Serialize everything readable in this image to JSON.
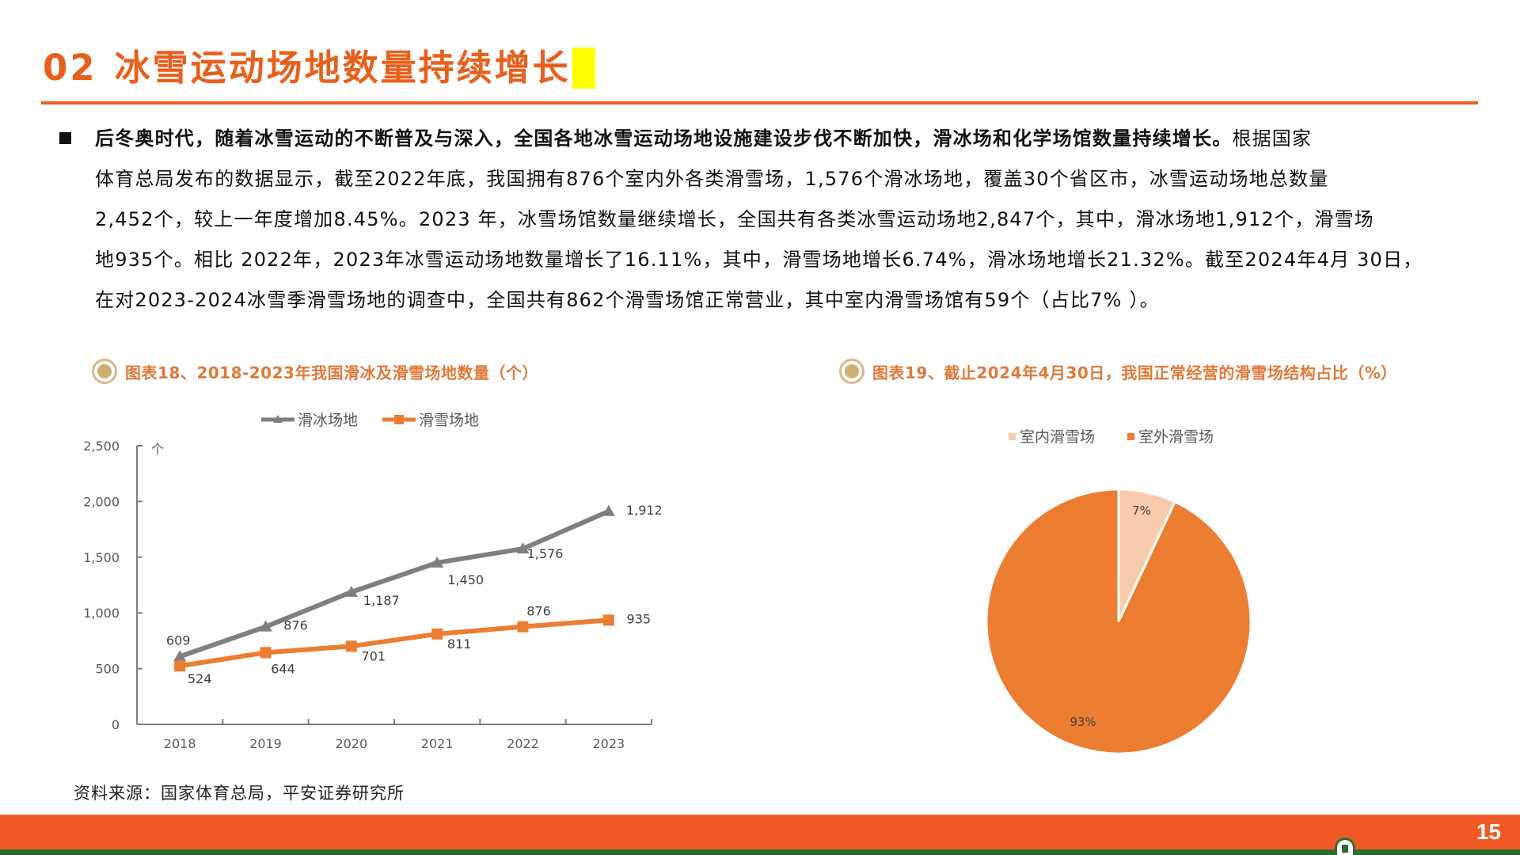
{
  "title": {
    "number": "02",
    "text": "冰雪运动场地数量持续增长",
    "color": "#E8601C",
    "highlight_color": "#FFFF00"
  },
  "paragraph": {
    "bold_lead": "后冬奥时代，随着冰雪运动的不断普及与深入，全国各地冰雪运动场地设施建设步伐不断加快，滑冰场和化学场馆数量持续增长。",
    "line1_rest": "根据国家",
    "line2": "体育总局发布的数据显示，截至2022年底，我国拥有876个室内外各类滑雪场，1,576个滑冰场地，覆盖30个省区市，冰雪运动场地总数量",
    "line3": "2,452个，较上一年度增加8.45%。2023 年，冰雪场馆数量继续增长，全国共有各类冰雪运动场地2,847个，其中，滑冰场地1,912个，滑雪场",
    "line4": "地935个。相比 2022年，2023年冰雪运动场地数量增长了16.11%，其中，滑雪场地增长6.74%，滑冰场地增长21.32%。截至2024年4月 30日，",
    "line5": "在对2023-2024冰雪季滑雪场地的调查中，全国共有862个滑雪场馆正常营业，其中室内滑雪场馆有59个（占比7% ）。"
  },
  "figures": {
    "fig18_title": "图表18、2018-2023年我国滑冰及滑雪场地数量（个）",
    "fig19_title": "图表19、截止2024年4月30日，我国正常经营的滑雪场结构占比（%）"
  },
  "chart_data": [
    {
      "type": "line",
      "title": "图表18、2018-2023年我国滑冰及滑雪场地数量（个）",
      "xlabel": "",
      "ylabel": "个",
      "categories": [
        "2018",
        "2019",
        "2020",
        "2021",
        "2022",
        "2023"
      ],
      "series": [
        {
          "name": "滑冰场地",
          "values": [
            609,
            876,
            1187,
            1450,
            1576,
            1912
          ],
          "labels": [
            "609",
            "876",
            "1,187",
            "1,450",
            "1,576",
            "1,912"
          ],
          "color": "#7F7F7F",
          "marker": "triangle"
        },
        {
          "name": "滑雪场地",
          "values": [
            524,
            644,
            701,
            811,
            876,
            935
          ],
          "labels": [
            "524",
            "644",
            "701",
            "811",
            "876",
            "935"
          ],
          "color": "#ED7D31",
          "marker": "square"
        }
      ],
      "yticks": [
        "0",
        "500",
        "1,000",
        "1,500",
        "2,000",
        "2,500"
      ],
      "ylim": [
        0,
        2500
      ],
      "grid": false,
      "legend_position": "top"
    },
    {
      "type": "pie",
      "title": "图表19、截止2024年4月30日，我国正常经营的滑雪场结构占比（%）",
      "categories": [
        "室内滑雪场",
        "室外滑雪场"
      ],
      "values": [
        7,
        93
      ],
      "labels": [
        "7%",
        "93%"
      ],
      "colors": [
        "#F8CBAD",
        "#ED7D31"
      ],
      "legend_position": "top"
    }
  ],
  "source": "资料来源：国家体育总局，平安证券研究所",
  "footer": {
    "page_number": "15",
    "bar_color": "#F15A24",
    "line_color": "#2E6B2E"
  }
}
